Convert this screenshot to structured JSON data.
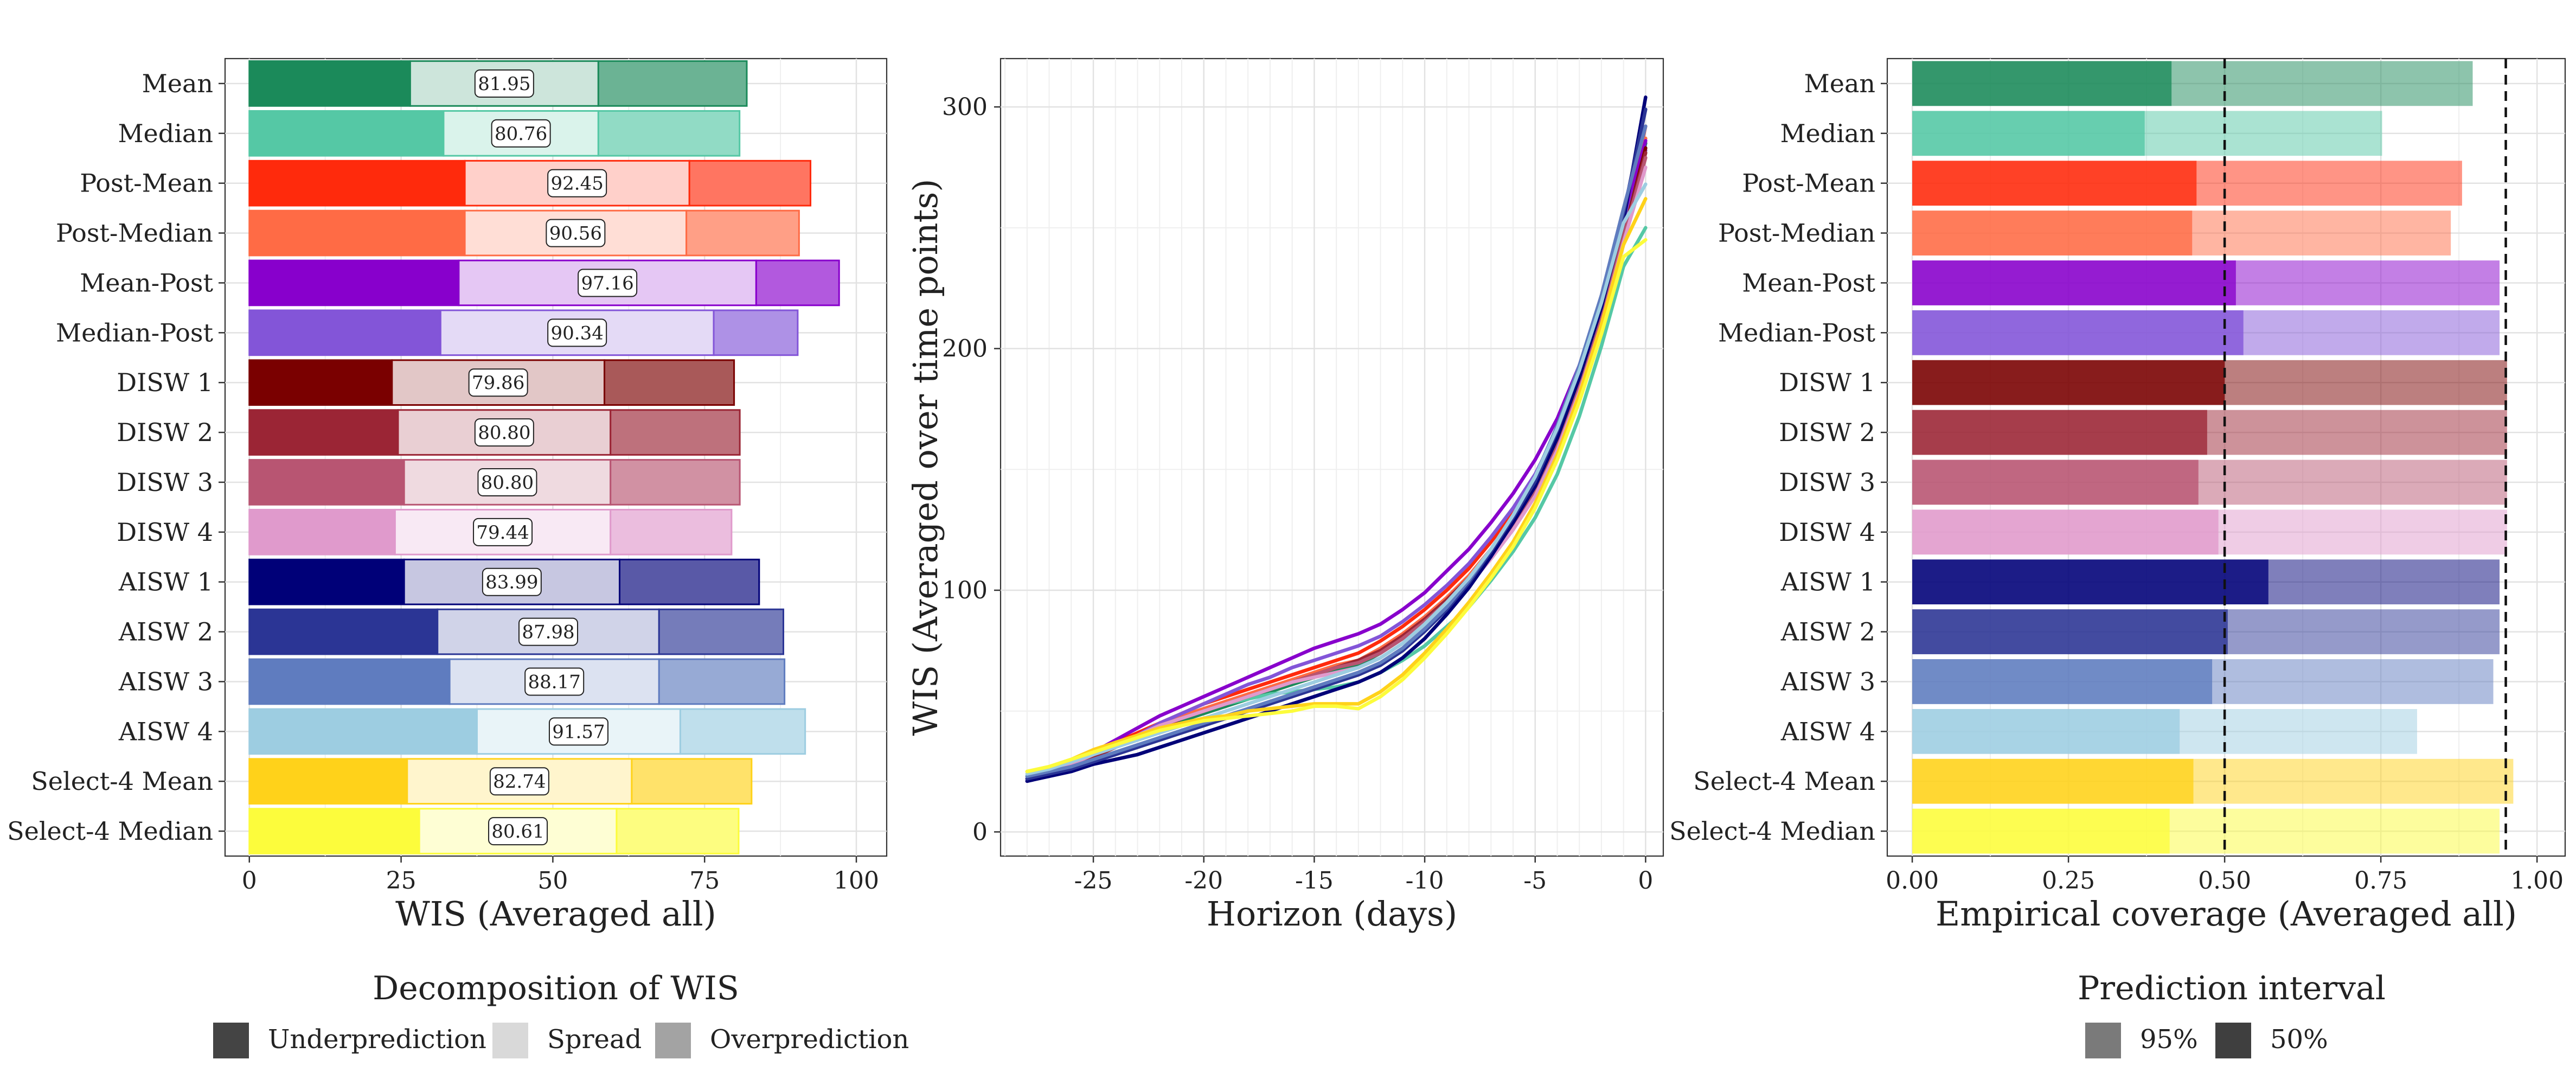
{
  "methods": [
    "Mean",
    "Median",
    "Post-Mean",
    "Post-Median",
    "Mean-Post",
    "Median-Post",
    "DISW 1",
    "DISW 2",
    "DISW 3",
    "DISW 4",
    "AISW 1",
    "AISW 2",
    "AISW 3",
    "AISW 4",
    "Select-4 Mean",
    "Select-4 Median"
  ],
  "colors": {
    "Mean": "#1b8a5a",
    "Median": "#55c8a5",
    "Post-Mean": "#ff2a0c",
    "Post-Median": "#ff6b45",
    "Mean-Post": "#8800cc",
    "Median-Post": "#8355d8",
    "DISW 1": "#7a0000",
    "DISW 2": "#9b2535",
    "DISW 3": "#b85572",
    "DISW 4": "#e09acc",
    "AISW 1": "#000078",
    "AISW 2": "#2b3595",
    "AISW 3": "#5f7cbf",
    "AISW 4": "#9dcde1",
    "Select-4 Mean": "#ffd21a",
    "Select-4 Median": "#fcfc3c"
  },
  "chart_data": [
    {
      "type": "bar",
      "subtype": "stacked-horizontal",
      "xlabel": "WIS (Averaged all)",
      "xlim": [
        -4,
        105
      ],
      "xticks": [
        0,
        25,
        50,
        75,
        100
      ],
      "legend_title": "Decomposition of WIS",
      "legend_position": "bottom",
      "legend_labels": [
        "Underprediction",
        "Spread",
        "Overprediction"
      ],
      "categories": [
        "Mean",
        "Median",
        "Post-Mean",
        "Post-Median",
        "Mean-Post",
        "Median-Post",
        "DISW 1",
        "DISW 2",
        "DISW 3",
        "DISW 4",
        "AISW 1",
        "AISW 2",
        "AISW 3",
        "AISW 4",
        "Select-4 Mean",
        "Select-4 Median"
      ],
      "series": [
        {
          "name": "Underprediction",
          "values": [
            26.5,
            32.0,
            35.5,
            35.5,
            34.5,
            31.5,
            23.5,
            24.5,
            25.5,
            24.0,
            25.5,
            31.0,
            33.0,
            37.5,
            26.0,
            28.0
          ]
        },
        {
          "name": "Spread",
          "values": [
            31.0,
            25.5,
            37.0,
            36.5,
            49.0,
            45.0,
            35.0,
            35.0,
            34.0,
            35.5,
            35.5,
            36.5,
            34.5,
            33.5,
            37.0,
            32.5
          ]
        },
        {
          "name": "Overprediction",
          "values": [
            24.45,
            23.26,
            19.95,
            18.56,
            13.66,
            13.84,
            21.36,
            21.3,
            21.3,
            19.94,
            22.99,
            20.48,
            20.67,
            20.57,
            19.74,
            20.11
          ]
        }
      ],
      "totals": [
        "81.95",
        "80.76",
        "92.45",
        "90.56",
        "97.16",
        "90.34",
        "79.86",
        "80.80",
        "80.80",
        "79.44",
        "83.99",
        "87.98",
        "88.17",
        "91.57",
        "82.74",
        "80.61"
      ]
    },
    {
      "type": "line",
      "xlabel": "Horizon (days)",
      "ylabel": "WIS (Averaged over time points)",
      "xlim": [
        -29.2,
        0.8
      ],
      "ylim": [
        -10,
        320
      ],
      "xticks": [
        -25,
        -20,
        -15,
        -10,
        -5,
        0
      ],
      "yticks": [
        0,
        100,
        200,
        300
      ],
      "x": [
        -28,
        -27,
        -26,
        -25,
        -24,
        -23,
        -22,
        -21,
        -20,
        -19,
        -18,
        -17,
        -16,
        -15,
        -14,
        -13,
        -12,
        -11,
        -10,
        -9,
        -8,
        -7,
        -6,
        -5,
        -4,
        -3,
        -2,
        -1,
        0
      ],
      "series": [
        {
          "name": "Mean",
          "values": [
            22,
            24,
            27,
            31,
            35,
            39,
            43,
            46,
            49,
            52,
            55,
            58,
            61,
            64,
            67,
            69,
            74,
            80,
            87,
            95,
            104,
            115,
            127,
            141,
            160,
            184,
            212,
            247,
            285
          ]
        },
        {
          "name": "Median",
          "values": [
            23,
            25,
            28,
            32,
            36,
            40,
            44,
            48,
            51,
            53,
            55,
            57,
            58,
            59,
            60,
            62,
            66,
            71,
            77,
            85,
            93,
            104,
            116,
            130,
            148,
            172,
            201,
            234,
            250
          ]
        },
        {
          "name": "Post-Mean",
          "values": [
            22,
            25,
            28,
            32,
            37,
            41,
            45,
            49,
            53,
            56,
            59,
            62,
            65,
            68,
            71,
            74,
            79,
            85,
            92,
            100,
            109,
            120,
            132,
            146,
            165,
            189,
            217,
            252,
            292
          ]
        },
        {
          "name": "Post-Median",
          "values": [
            22,
            25,
            28,
            32,
            36,
            40,
            44,
            48,
            51,
            54,
            57,
            60,
            63,
            66,
            69,
            71,
            76,
            82,
            89,
            97,
            106,
            117,
            129,
            143,
            162,
            186,
            214,
            249,
            287
          ]
        },
        {
          "name": "Mean-Post",
          "values": [
            21,
            24,
            28,
            33,
            38,
            43,
            48,
            52,
            56,
            60,
            64,
            68,
            72,
            76,
            79,
            82,
            86,
            92,
            99,
            108,
            117,
            128,
            140,
            154,
            171,
            193,
            220,
            253,
            286
          ]
        },
        {
          "name": "Median-Post",
          "values": [
            21,
            24,
            27,
            31,
            36,
            40,
            45,
            49,
            53,
            57,
            61,
            64,
            68,
            71,
            74,
            77,
            81,
            87,
            94,
            102,
            111,
            122,
            134,
            148,
            166,
            189,
            216,
            249,
            282
          ]
        },
        {
          "name": "DISW 1",
          "values": [
            22,
            25,
            28,
            31,
            35,
            39,
            43,
            47,
            50,
            53,
            56,
            59,
            62,
            65,
            68,
            71,
            75,
            81,
            88,
            96,
            105,
            116,
            128,
            142,
            161,
            185,
            213,
            247,
            283
          ]
        },
        {
          "name": "DISW 2",
          "values": [
            22,
            25,
            28,
            31,
            35,
            39,
            43,
            47,
            50,
            53,
            56,
            59,
            62,
            65,
            68,
            71,
            75,
            81,
            88,
            96,
            105,
            116,
            128,
            142,
            161,
            185,
            213,
            247,
            281
          ]
        },
        {
          "name": "DISW 3",
          "values": [
            22,
            25,
            28,
            32,
            36,
            40,
            44,
            47,
            50,
            53,
            56,
            59,
            62,
            65,
            68,
            70,
            74,
            80,
            87,
            95,
            104,
            115,
            127,
            141,
            160,
            184,
            212,
            246,
            279
          ]
        },
        {
          "name": "DISW 4",
          "values": [
            22,
            25,
            28,
            32,
            36,
            40,
            44,
            47,
            50,
            53,
            56,
            59,
            62,
            64,
            66,
            68,
            72,
            78,
            85,
            93,
            102,
            113,
            125,
            139,
            158,
            182,
            210,
            244,
            275
          ]
        },
        {
          "name": "AISW 1",
          "values": [
            21,
            23,
            25,
            28,
            30,
            32,
            35,
            38,
            41,
            44,
            47,
            50,
            53,
            56,
            59,
            62,
            66,
            72,
            80,
            90,
            101,
            114,
            128,
            143,
            163,
            188,
            217,
            253,
            304
          ]
        },
        {
          "name": "AISW 2",
          "values": [
            22,
            24,
            26,
            29,
            32,
            35,
            38,
            41,
            44,
            47,
            50,
            53,
            56,
            59,
            62,
            65,
            69,
            75,
            83,
            92,
            103,
            116,
            130,
            145,
            166,
            191,
            220,
            256,
            299
          ]
        },
        {
          "name": "AISW 3",
          "values": [
            23,
            25,
            27,
            30,
            33,
            36,
            39,
            42,
            45,
            48,
            51,
            54,
            57,
            60,
            63,
            66,
            70,
            76,
            84,
            93,
            104,
            117,
            131,
            147,
            168,
            193,
            222,
            258,
            292
          ]
        },
        {
          "name": "AISW 4",
          "values": [
            24,
            26,
            29,
            32,
            35,
            38,
            41,
            44,
            47,
            50,
            53,
            56,
            59,
            62,
            65,
            68,
            72,
            78,
            86,
            95,
            105,
            117,
            131,
            147,
            167,
            191,
            219,
            252,
            268
          ]
        },
        {
          "name": "Select-4 Mean",
          "values": [
            25,
            27,
            30,
            34,
            37,
            40,
            43,
            45,
            47,
            48,
            50,
            51,
            52,
            53,
            53,
            53,
            58,
            65,
            74,
            84,
            95,
            107,
            120,
            136,
            156,
            181,
            210,
            243,
            262
          ]
        },
        {
          "name": "Select-4 Median",
          "values": [
            25,
            27,
            30,
            33,
            36,
            39,
            42,
            44,
            46,
            47,
            48,
            49,
            50,
            52,
            52,
            51,
            56,
            63,
            72,
            82,
            93,
            105,
            118,
            134,
            154,
            178,
            206,
            238,
            245
          ]
        }
      ]
    },
    {
      "type": "bar",
      "subtype": "overlaid-horizontal",
      "xlabel": "Empirical coverage (Averaged all)",
      "xlim": [
        -0.04,
        1.045
      ],
      "xticks": [
        0.0,
        0.25,
        0.5,
        0.75,
        1.0
      ],
      "xtick_labels": [
        "0.00",
        "0.25",
        "0.50",
        "0.75",
        "1.00"
      ],
      "reference_lines": [
        0.5,
        0.95
      ],
      "legend_title": "Prediction interval",
      "legend_position": "bottom",
      "legend_labels": [
        "95%",
        "50%"
      ],
      "categories": [
        "Mean",
        "Median",
        "Post-Mean",
        "Post-Median",
        "Mean-Post",
        "Median-Post",
        "DISW 1",
        "DISW 2",
        "DISW 3",
        "DISW 4",
        "AISW 1",
        "AISW 2",
        "AISW 3",
        "AISW 4",
        "Select-4 Mean",
        "Select-4 Median"
      ],
      "series": [
        {
          "name": "95%",
          "values": [
            0.897,
            0.752,
            0.88,
            0.862,
            0.94,
            0.94,
            0.952,
            0.952,
            0.952,
            0.952,
            0.94,
            0.94,
            0.93,
            0.808,
            0.962,
            0.94
          ]
        },
        {
          "name": "50%",
          "values": [
            0.415,
            0.372,
            0.455,
            0.448,
            0.518,
            0.53,
            0.5,
            0.472,
            0.458,
            0.49,
            0.57,
            0.505,
            0.48,
            0.428,
            0.45,
            0.412
          ]
        }
      ]
    }
  ]
}
